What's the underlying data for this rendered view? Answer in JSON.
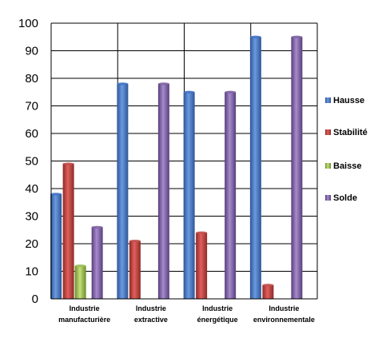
{
  "chart_data": {
    "type": "bar",
    "categories": [
      [
        "Industrie",
        "manufacturière"
      ],
      [
        "Industrie",
        "extractive"
      ],
      [
        "Industrie",
        "énergétique"
      ],
      [
        "Industrie",
        "environnementale"
      ]
    ],
    "series": [
      {
        "name": "Hausse",
        "color": "#4472C4",
        "values": [
          38,
          78,
          75,
          95
        ]
      },
      {
        "name": "Stabilité",
        "color": "#C0504D",
        "values": [
          49,
          21,
          24,
          5
        ]
      },
      {
        "name": "Baisse",
        "color": "#9BBB59",
        "values": [
          12,
          0,
          0,
          0
        ]
      },
      {
        "name": "Solde",
        "color": "#8064A2",
        "values": [
          26,
          78,
          75,
          95
        ]
      }
    ],
    "yticks": [
      "0",
      "10",
      "20",
      "30",
      "40",
      "50",
      "60",
      "70",
      "80",
      "90",
      "100"
    ],
    "ylim": [
      0,
      100
    ],
    "grid": true,
    "legend_position": "right"
  }
}
